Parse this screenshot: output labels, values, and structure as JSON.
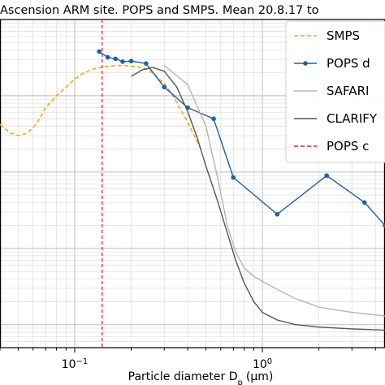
{
  "chart_data": {
    "type": "line",
    "title": "Ascension ARM site. POPS and SMPS. Mean 20.8.17 to",
    "xlabel": "Particle diameter D",
    "xlabel_sub": "p",
    "xlabel_unit": "(μm)",
    "xscale": "log",
    "xlim": [
      0.04,
      4.5
    ],
    "yscale": "log",
    "ylim": [
      0.5,
      10000
    ],
    "grid": true,
    "legend_position": "top-right",
    "x_ticks": [
      {
        "value": 0.1,
        "base": "10",
        "exp": "−1"
      },
      {
        "value": 1,
        "base": "10",
        "exp": "0"
      }
    ],
    "series": [
      {
        "name": "SMPS",
        "style": "dashed",
        "color": "#f5a623",
        "markers": false,
        "x": [
          0.04,
          0.045,
          0.05,
          0.055,
          0.06,
          0.065,
          0.07,
          0.08,
          0.09,
          0.1,
          0.11,
          0.12,
          0.13,
          0.14,
          0.15,
          0.17,
          0.2,
          0.23,
          0.26,
          0.3,
          0.33,
          0.36,
          0.4,
          0.44,
          0.47
        ],
        "y": [
          420,
          330,
          300,
          320,
          380,
          500,
          700,
          1000,
          1300,
          1650,
          1950,
          2150,
          2280,
          2380,
          2430,
          2500,
          2450,
          2350,
          2000,
          1450,
          1050,
          720,
          450,
          280,
          200
        ]
      },
      {
        "name": "POPS d",
        "style": "solid",
        "color": "#1f5fa8",
        "markers": true,
        "x": [
          0.135,
          0.15,
          0.165,
          0.18,
          0.2,
          0.24,
          0.3,
          0.4,
          0.55,
          0.7,
          1.2,
          2.2,
          3.5,
          4.5
        ],
        "y": [
          3800,
          3200,
          3050,
          2800,
          2850,
          2650,
          1300,
          700,
          500,
          85,
          28,
          90,
          40,
          20
        ]
      },
      {
        "name": "SAFARI",
        "style": "solid",
        "color": "#b5b5b5",
        "markers": false,
        "x": [
          0.3,
          0.4,
          0.5,
          0.58,
          0.65,
          0.72,
          0.8,
          0.9,
          1.0,
          1.2,
          1.5,
          2.0,
          3.0,
          4.5
        ],
        "y": [
          2500,
          1400,
          400,
          80,
          20,
          9,
          5.5,
          4.3,
          3.7,
          2.9,
          2.2,
          1.7,
          1.45,
          1.3
        ]
      },
      {
        "name": "CLARIFY",
        "style": "solid",
        "color": "#555555",
        "markers": false,
        "x": [
          0.2,
          0.23,
          0.26,
          0.3,
          0.35,
          0.4,
          0.45,
          0.5,
          0.58,
          0.65,
          0.72,
          0.8,
          0.9,
          1.0,
          1.2,
          1.5,
          2.0,
          3.0,
          4.5
        ],
        "y": [
          1800,
          2200,
          2350,
          2100,
          1300,
          620,
          280,
          120,
          40,
          16,
          7,
          3.5,
          2.0,
          1.45,
          1.15,
          1.0,
          0.93,
          0.88,
          0.85
        ]
      },
      {
        "name": "POPS c",
        "style": "dashed",
        "color": "#d62728",
        "markers": false,
        "vline": 0.14
      }
    ]
  }
}
